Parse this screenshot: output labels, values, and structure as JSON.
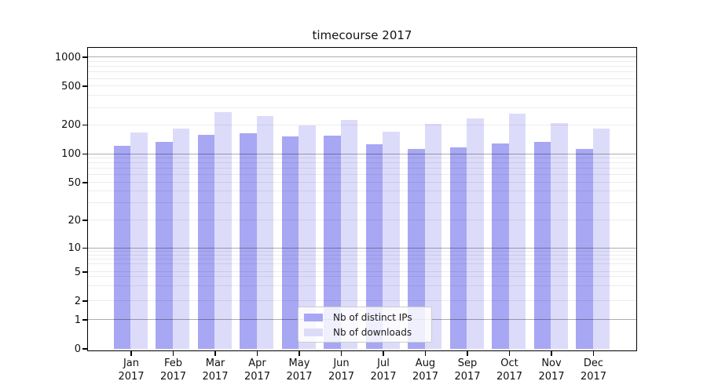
{
  "chart_data": {
    "type": "bar",
    "title": "timecourse 2017",
    "categories": [
      "Jan",
      "Feb",
      "Mar",
      "Apr",
      "May",
      "Jun",
      "Jul",
      "Aug",
      "Sep",
      "Oct",
      "Nov",
      "Dec"
    ],
    "category_year": "2017",
    "series": [
      {
        "name": "Nb of distinct IPs",
        "color": "#a7a7f3",
        "values": [
          120,
          131,
          155,
          161,
          149,
          152,
          124,
          111,
          115,
          126,
          131,
          112
        ]
      },
      {
        "name": "Nb of downloads",
        "color": "#dcdcfa",
        "values": [
          165,
          180,
          265,
          243,
          194,
          221,
          169,
          201,
          232,
          256,
          204,
          181
        ]
      }
    ],
    "yscale": "symlog",
    "yticks": [
      0,
      1,
      2,
      5,
      10,
      20,
      50,
      100,
      200,
      500,
      1000
    ],
    "ylim": [
      0,
      1260
    ],
    "xlabel": "",
    "ylabel": "",
    "grid": "horizontal only: dark major lines at 1/10/100/1000, light minor log lines at 2-9 per decade",
    "legend_position": "lower center, inside plot"
  },
  "colors": {
    "spine": "#000000",
    "major_grid_rgba": "rgba(0,0,0,0.32)",
    "minor_grid_rgba": "rgba(0,0,0,0.075)",
    "legend_border": "#cccccc",
    "text": "#111111"
  }
}
